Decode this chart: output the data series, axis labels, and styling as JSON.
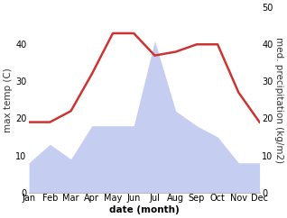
{
  "months": [
    "Jan",
    "Feb",
    "Mar",
    "Apr",
    "May",
    "Jun",
    "Jul",
    "Aug",
    "Sep",
    "Oct",
    "Nov",
    "Dec"
  ],
  "x": [
    1,
    2,
    3,
    4,
    5,
    6,
    7,
    8,
    9,
    10,
    11,
    12
  ],
  "temperature": [
    19,
    19,
    22,
    32,
    43,
    43,
    37,
    38,
    40,
    40,
    27,
    19
  ],
  "precipitation": [
    8,
    13,
    9,
    18,
    18,
    18,
    41,
    22,
    18,
    15,
    8,
    8
  ],
  "temp_color": "#cc3333",
  "precip_color": "#c5cef0",
  "temp_ylim": [
    0,
    50
  ],
  "precip_ylim": [
    0,
    50
  ],
  "temp_yticks": [
    0,
    10,
    20,
    30,
    40
  ],
  "precip_yticks": [
    0,
    10,
    20,
    30,
    40,
    50
  ],
  "xlabel": "date (month)",
  "ylabel_left": "max temp (C)",
  "ylabel_right": "med. precipitation (kg/m2)",
  "background_color": "#ffffff",
  "line_width": 1.8,
  "tick_fontsize": 7,
  "label_fontsize": 7.5
}
